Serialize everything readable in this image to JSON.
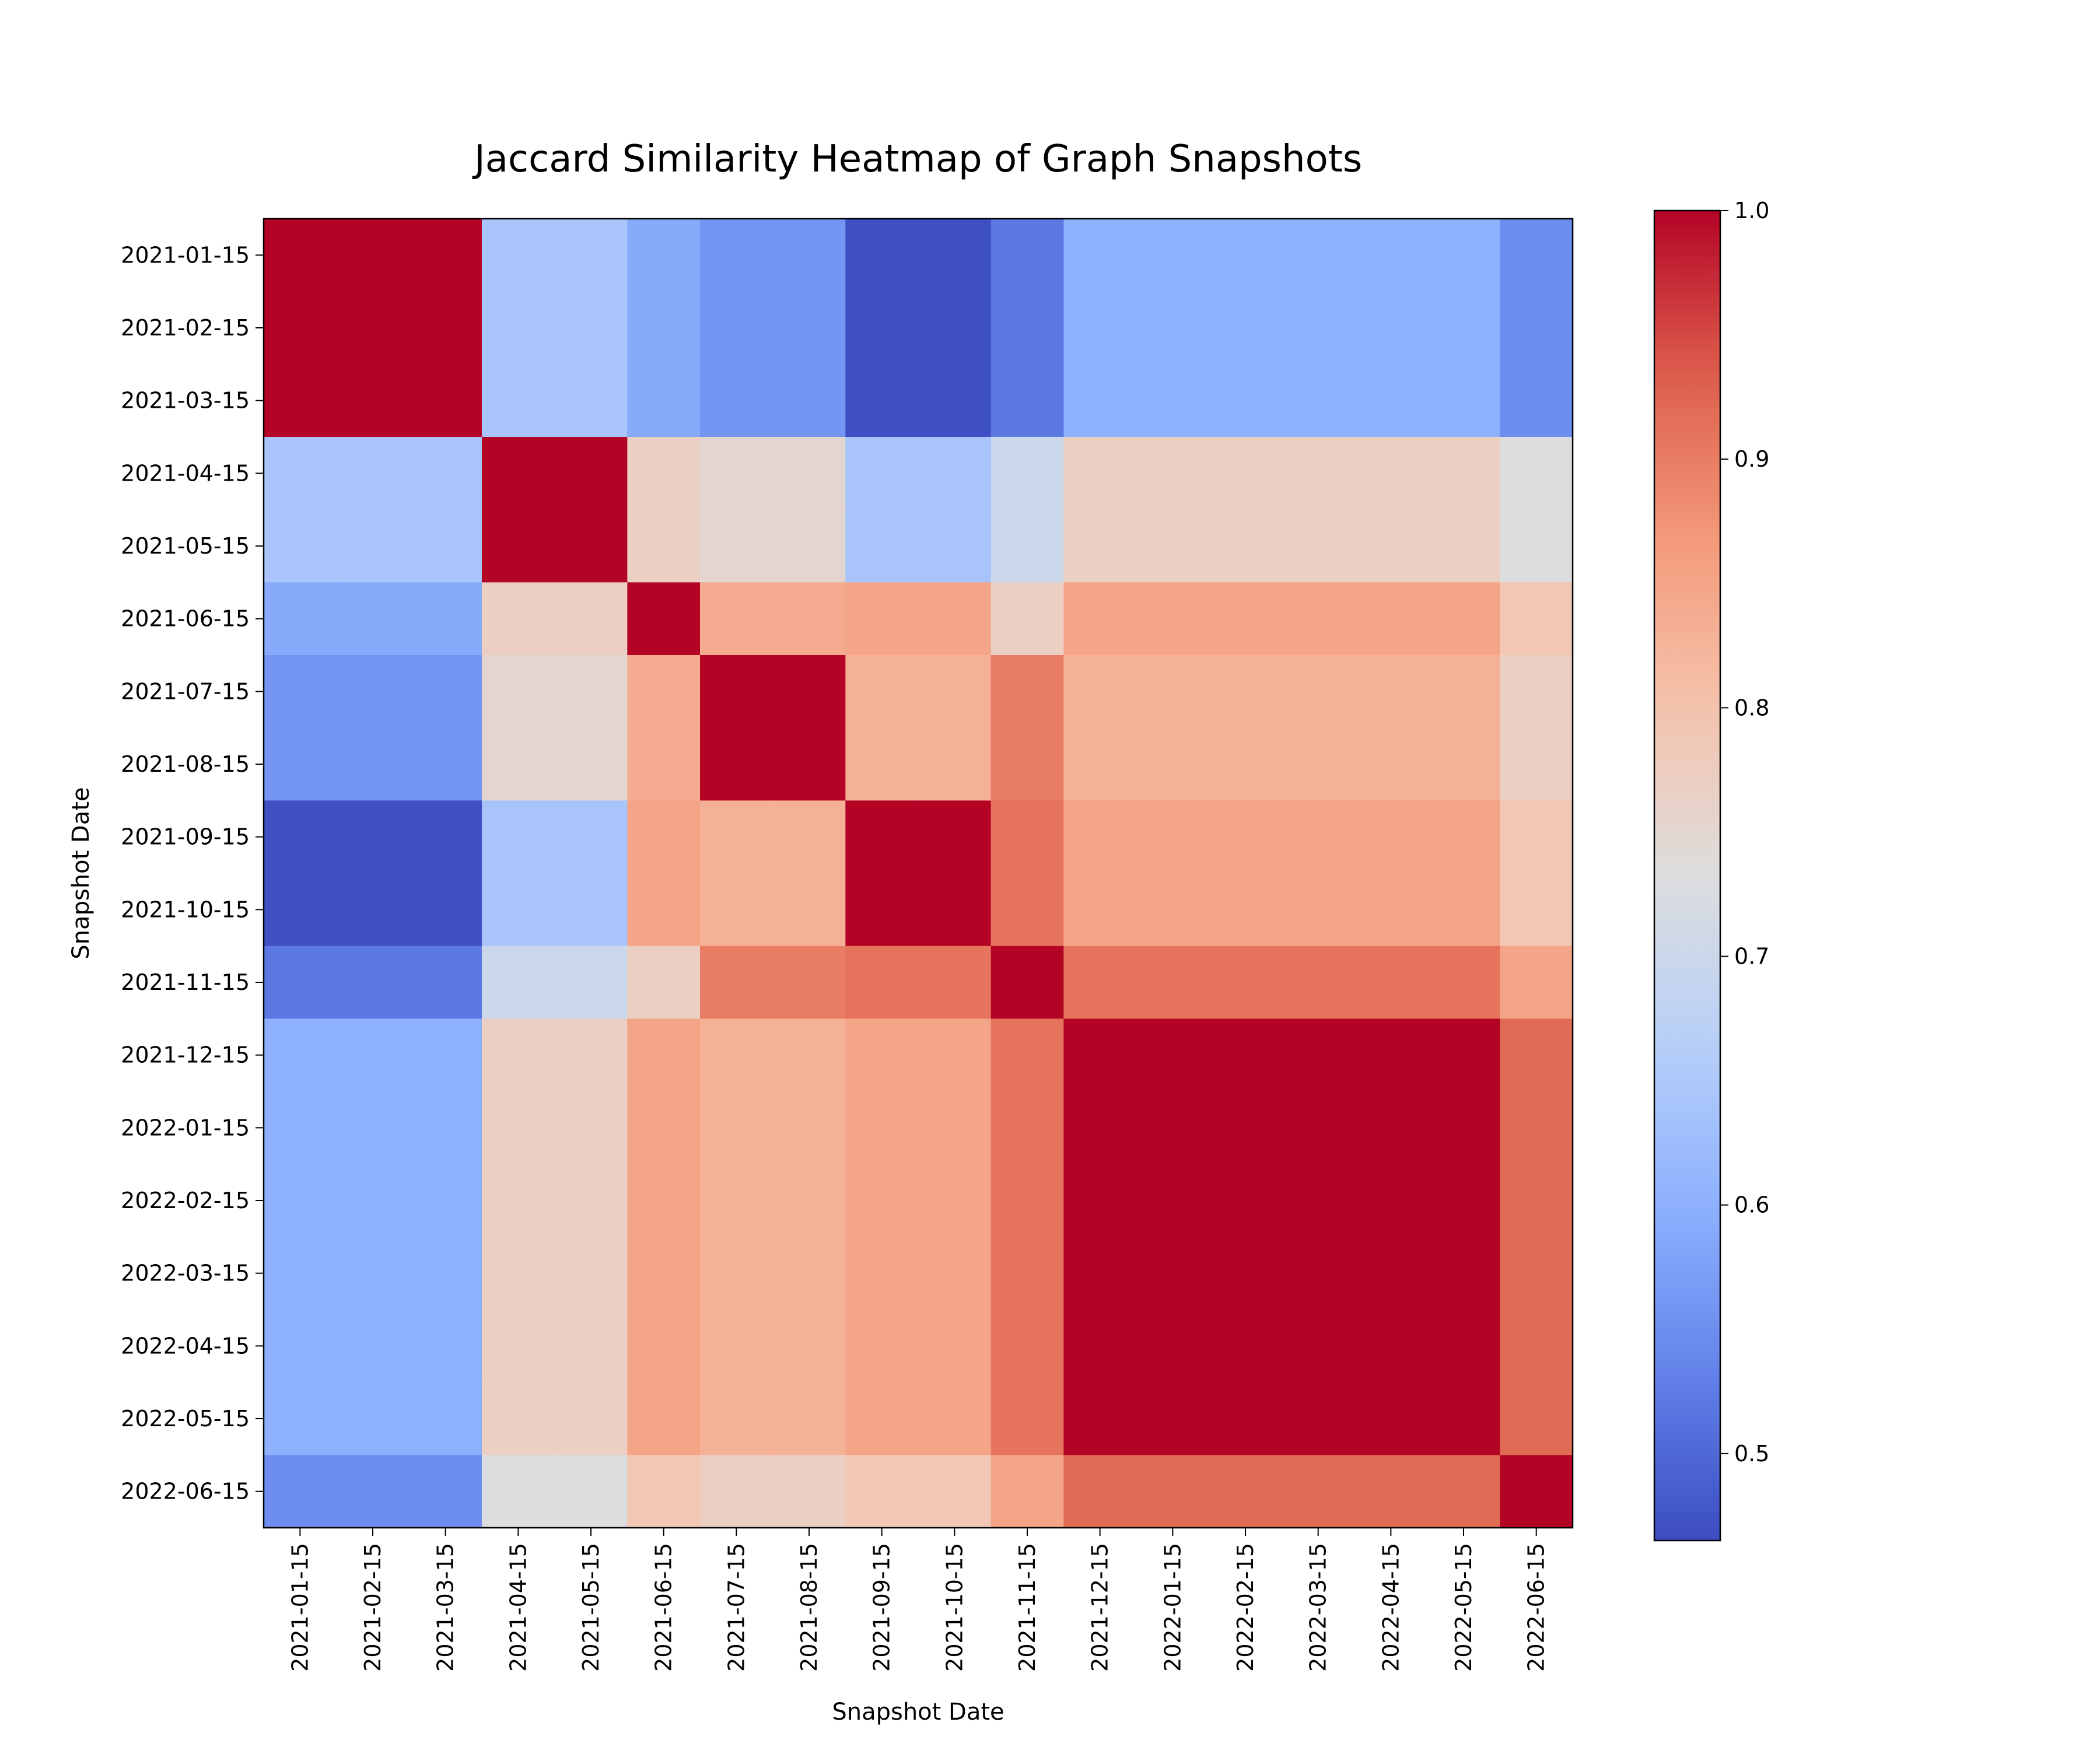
{
  "chart_data": {
    "type": "heatmap",
    "title": "Jaccard Similarity Heatmap of Graph Snapshots",
    "xlabel": "Snapshot Date",
    "ylabel": "Snapshot Date",
    "labels": [
      "2021-01-15",
      "2021-02-15",
      "2021-03-15",
      "2021-04-15",
      "2021-05-15",
      "2021-06-15",
      "2021-07-15",
      "2021-08-15",
      "2021-09-15",
      "2021-10-15",
      "2021-11-15",
      "2021-12-15",
      "2022-01-15",
      "2022-02-15",
      "2022-03-15",
      "2022-04-15",
      "2022-05-15",
      "2022-06-15"
    ],
    "group_values": [
      [
        1.0,
        0.64,
        0.59,
        0.56,
        0.47,
        0.52,
        0.6,
        0.55
      ],
      [
        0.64,
        1.0,
        0.77,
        0.75,
        0.64,
        0.7,
        0.77,
        0.73
      ],
      [
        0.59,
        0.77,
        1.0,
        0.84,
        0.85,
        0.77,
        0.85,
        0.79
      ],
      [
        0.56,
        0.75,
        0.84,
        1.0,
        0.83,
        0.9,
        0.83,
        0.77
      ],
      [
        0.47,
        0.64,
        0.85,
        0.83,
        1.0,
        0.91,
        0.85,
        0.79
      ],
      [
        0.52,
        0.7,
        0.77,
        0.9,
        0.91,
        1.0,
        0.91,
        0.85
      ],
      [
        0.6,
        0.77,
        0.85,
        0.83,
        0.85,
        0.91,
        1.0,
        0.92
      ],
      [
        0.55,
        0.73,
        0.79,
        0.77,
        0.79,
        0.85,
        0.92,
        1.0
      ]
    ],
    "group_of_label": [
      0,
      0,
      0,
      1,
      1,
      2,
      3,
      3,
      4,
      4,
      5,
      6,
      6,
      6,
      6,
      6,
      6,
      7
    ],
    "colorbar": {
      "colormap": "coolwarm",
      "vmin": 0.465,
      "vmax": 1.0,
      "ticks": [
        "0.5",
        "0.6",
        "0.7",
        "0.8",
        "0.9",
        "1.0"
      ]
    },
    "grid": false,
    "legend": "colorbar-right"
  }
}
